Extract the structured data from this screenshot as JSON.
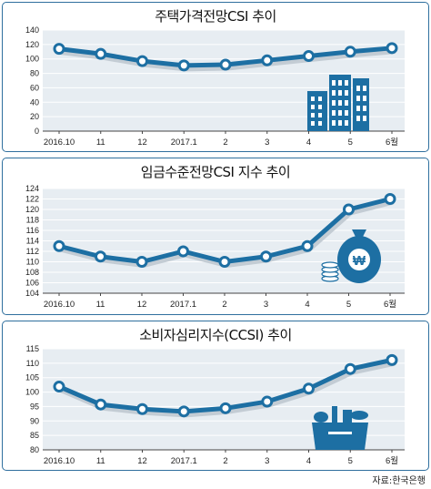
{
  "source": "자료:한국은행",
  "charts": [
    {
      "type": "line",
      "title": "주택가격전망CSI 추이",
      "categories": [
        "2016.10",
        "11",
        "12",
        "2017.1",
        "2",
        "3",
        "4",
        "5",
        "6월"
      ],
      "values": [
        114,
        107,
        97,
        91,
        92,
        98,
        104,
        110,
        115
      ],
      "ylim": [
        0,
        140
      ],
      "yticks": [
        0,
        20,
        40,
        60,
        80,
        100,
        120,
        140
      ],
      "ytick_labels": [
        "0",
        "20",
        "40",
        "60",
        "80",
        "100",
        "120",
        "140"
      ],
      "illustration": "apartment-buildings-icon",
      "color": "#1d6fa3"
    },
    {
      "type": "line",
      "title": "임금수준전망CSI 지수 추이",
      "categories": [
        "2016.10",
        "11",
        "12",
        "2017.1",
        "2",
        "3",
        "4",
        "5",
        "6월"
      ],
      "values": [
        113,
        111,
        110,
        112,
        110,
        111,
        113,
        120,
        122
      ],
      "ylim": [
        104,
        124
      ],
      "yticks": [
        104,
        106,
        108,
        110,
        112,
        114,
        116,
        118,
        120,
        122,
        124
      ],
      "ytick_labels": [
        "104",
        "106",
        "108",
        "110",
        "112",
        "114",
        "116",
        "118",
        "120",
        "122",
        "124"
      ],
      "illustration": "money-bag-icon",
      "illustration_label": "₩",
      "color": "#1d6fa3"
    },
    {
      "type": "line",
      "title": "소비자심리지수(CCSI) 추이",
      "categories": [
        "2016.10",
        "11",
        "12",
        "2017.1",
        "2",
        "3",
        "4",
        "5",
        "6월"
      ],
      "values": [
        101.9,
        95.7,
        94.1,
        93.3,
        94.4,
        96.7,
        101.2,
        108.0,
        111.1
      ],
      "ylim": [
        80,
        115
      ],
      "yticks": [
        80,
        85,
        90,
        95,
        100,
        105,
        110,
        115
      ],
      "ytick_labels": [
        "80",
        "85",
        "90",
        "95",
        "100",
        "105",
        "110",
        "115"
      ],
      "illustration": "shopping-bag-icon",
      "color": "#1d6fa3"
    }
  ]
}
